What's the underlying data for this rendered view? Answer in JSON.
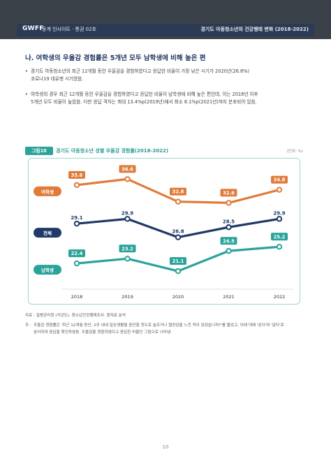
{
  "header": {
    "brand": "GWFF",
    "subtitle": "동계 인사이트 · 통권 02호",
    "right_title": "경기도 아동청소년의 건강행태 변화 (2018-2022)"
  },
  "section": {
    "title": "나. 여학생의 우울감 경험률은 5개년 모두 남학생에 비해 높은 편"
  },
  "bullets": [
    {
      "marker": "•",
      "line1": "경기도 아동청소년의 최근 12개월 동안 우울감을 경험하였다고 응답한 비율이 가장 낮은 시기가 2020년(26.8%)",
      "line2": "코로나19 대유행 시기였음."
    },
    {
      "marker": "•",
      "line1": "여학생의 경우 최근 12개월 동안 우울감을 경험하였다고 응답한 비율이 남학생에 비해 높은 편인데, 이는 2018년 이후",
      "line2": "5개년 모두 비율이 높았음. 다만 응답 격차는 최대 13.4%p(2019년)에서 최소 8.1%p(2021년)까지 분포되어 있음."
    }
  ],
  "figure": {
    "tag": "그림10",
    "title": "경기도 아동청소년 성별 우울감 경험률(2018-2022)",
    "unit": "(단위: %)"
  },
  "chart_data": {
    "type": "line",
    "x": [
      "2018",
      "2019",
      "2020",
      "2021",
      "2022"
    ],
    "series": [
      {
        "name": "여학생",
        "values": [
          35.6,
          36.6,
          32.8,
          32.6,
          34.8
        ],
        "color": "#e07b39"
      },
      {
        "name": "전체",
        "values": [
          29.1,
          29.9,
          26.8,
          28.5,
          29.9
        ],
        "color": "#1f3a68"
      },
      {
        "name": "남학생",
        "values": [
          22.4,
          23.2,
          21.1,
          24.5,
          25.2
        ],
        "color": "#2aa39a"
      }
    ],
    "data_labels": [
      [
        "35.6",
        "36.6",
        "32.8",
        "32.6",
        "34.8"
      ],
      [
        "29.1",
        "29.9",
        "26.8",
        "28.5",
        "29.9"
      ],
      [
        "22.4",
        "23.2",
        "21.1",
        "24.5",
        "25.2"
      ]
    ],
    "ylim": [
      19,
      39
    ],
    "grid": false,
    "legend": "left, inline badges"
  },
  "source": "자료 : 질병관리청 (각년도). 청소년건강행태조사. 원자료 분석",
  "note": {
    "marker": "주 :",
    "line1": "우울감 경험률은 '최근 12개월 동안, 2주 내내 일상생활을 중단할 정도로 슬프거나 절망감을 느낀 적이 있었습니까?'를 물었고, 이에 대해 '있다'와 '없다'로",
    "line2": "분리하여 응답을 확인하였음. 우울감을 경험하였다고 응답한 비율인 그림으로 나타냄."
  },
  "page_number": "10"
}
